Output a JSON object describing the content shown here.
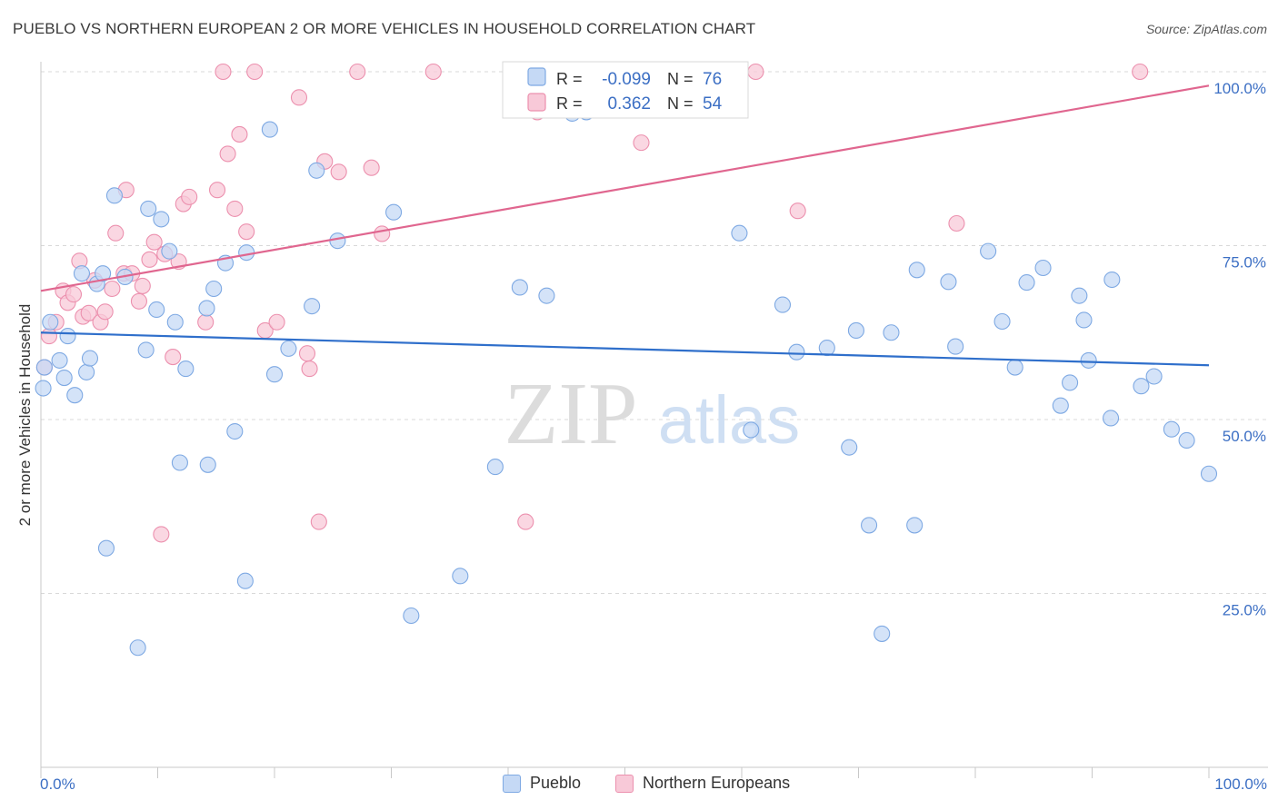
{
  "header": {
    "title": "PUEBLO VS NORTHERN EUROPEAN 2 OR MORE VEHICLES IN HOUSEHOLD CORRELATION CHART",
    "source": "Source: ZipAtlas.com"
  },
  "watermark": {
    "zip": "ZIP",
    "atlas": "atlas"
  },
  "legend_top": [
    {
      "r_label": "R =",
      "r_value": "-0.099",
      "n_label": "N =",
      "n_value": "76"
    },
    {
      "r_label": "R =",
      "r_value": "0.362",
      "n_label": "N =",
      "n_value": "54"
    }
  ],
  "legend_bottom": [
    {
      "label": "Pueblo"
    },
    {
      "label": "Northern Europeans"
    }
  ],
  "colors": {
    "pueblo_fill": "#c5d9f5",
    "pueblo_stroke": "#7ea9e3",
    "pueblo_line": "#2f6fcb",
    "north_fill": "#f8c9d8",
    "north_stroke": "#ec90ae",
    "north_line": "#e0668f",
    "axis_text": "#3c6fc4",
    "grid": "#d8d8d8"
  },
  "chart_data": {
    "type": "scatter",
    "title": "PUEBLO VS NORTHERN EUROPEAN 2 OR MORE VEHICLES IN HOUSEHOLD CORRELATION CHART",
    "xlabel": "",
    "ylabel": "2 or more Vehicles in Household",
    "xlim": [
      0,
      100
    ],
    "ylim": [
      0,
      100
    ],
    "x_tick_labels": [
      "0.0%",
      "100.0%"
    ],
    "y_ticks": [
      25,
      50,
      75,
      100
    ],
    "y_tick_labels": [
      "25.0%",
      "50.0%",
      "75.0%",
      "100.0%"
    ],
    "grid": true,
    "legend_placement": "top-center",
    "series": [
      {
        "name": "Pueblo",
        "r": -0.099,
        "n": 76,
        "trend": {
          "x": [
            0,
            100
          ],
          "y": [
            62.5,
            57.8
          ]
        },
        "points": [
          [
            0.2,
            54.5
          ],
          [
            0.8,
            64
          ],
          [
            1.6,
            58.5
          ],
          [
            2,
            56
          ],
          [
            2.3,
            62
          ],
          [
            2.9,
            53.5
          ],
          [
            3.5,
            71
          ],
          [
            3.9,
            56.8
          ],
          [
            4.2,
            58.8
          ],
          [
            4.8,
            69.5
          ],
          [
            5.3,
            71
          ],
          [
            5.6,
            31.5
          ],
          [
            6.3,
            82.2
          ],
          [
            7.2,
            70.5
          ],
          [
            8.3,
            17.2
          ],
          [
            9,
            60
          ],
          [
            9.2,
            80.3
          ],
          [
            9.9,
            65.8
          ],
          [
            10.3,
            78.8
          ],
          [
            11,
            74.2
          ],
          [
            11.5,
            64
          ],
          [
            11.9,
            43.8
          ],
          [
            12.4,
            57.3
          ],
          [
            14.2,
            66
          ],
          [
            14.3,
            43.5
          ],
          [
            14.8,
            68.8
          ],
          [
            15.8,
            72.5
          ],
          [
            16.6,
            48.3
          ],
          [
            17.5,
            26.8
          ],
          [
            17.6,
            74
          ],
          [
            19.6,
            91.7
          ],
          [
            20,
            56.5
          ],
          [
            21.2,
            60.2
          ],
          [
            23.2,
            66.3
          ],
          [
            23.6,
            85.8
          ],
          [
            25.4,
            75.7
          ],
          [
            30.2,
            79.8
          ],
          [
            31.7,
            21.8
          ],
          [
            35.9,
            27.5
          ],
          [
            38.9,
            43.2
          ],
          [
            41,
            69
          ],
          [
            43.3,
            67.8
          ],
          [
            45.5,
            94
          ],
          [
            46.7,
            94.2
          ],
          [
            59.8,
            76.8
          ],
          [
            60.8,
            48.5
          ],
          [
            63.5,
            66.5
          ],
          [
            64.7,
            59.7
          ],
          [
            67.3,
            60.3
          ],
          [
            69.2,
            46
          ],
          [
            69.8,
            62.8
          ],
          [
            70.9,
            34.8
          ],
          [
            72,
            19.2
          ],
          [
            72.8,
            62.5
          ],
          [
            75,
            71.5
          ],
          [
            74.8,
            34.8
          ],
          [
            77.7,
            69.8
          ],
          [
            78.3,
            60.5
          ],
          [
            81.1,
            74.2
          ],
          [
            82.3,
            64.1
          ],
          [
            83.4,
            57.5
          ],
          [
            84.4,
            69.7
          ],
          [
            85.8,
            71.8
          ],
          [
            87.3,
            52
          ],
          [
            88.1,
            55.3
          ],
          [
            88.9,
            67.8
          ],
          [
            89.3,
            64.3
          ],
          [
            89.7,
            58.5
          ],
          [
            91.6,
            50.2
          ],
          [
            91.7,
            70.1
          ],
          [
            94.2,
            54.8
          ],
          [
            95.3,
            56.2
          ],
          [
            96.8,
            48.6
          ],
          [
            98.1,
            47
          ],
          [
            100,
            42.2
          ],
          [
            0.3,
            57.5
          ]
        ]
      },
      {
        "name": "Northern Europeans",
        "r": 0.362,
        "n": 54,
        "trend": {
          "x": [
            0,
            100
          ],
          "y": [
            68.5,
            98
          ]
        },
        "points": [
          [
            0.3,
            57.5
          ],
          [
            0.7,
            62
          ],
          [
            1.3,
            64
          ],
          [
            1.9,
            68.5
          ],
          [
            2.3,
            66.8
          ],
          [
            2.8,
            68
          ],
          [
            3.3,
            72.8
          ],
          [
            3.6,
            64.8
          ],
          [
            4.1,
            65.3
          ],
          [
            4.6,
            70
          ],
          [
            5.1,
            64
          ],
          [
            5.5,
            65.5
          ],
          [
            6.1,
            68.8
          ],
          [
            6.4,
            76.8
          ],
          [
            7.1,
            71
          ],
          [
            7.3,
            83
          ],
          [
            7.8,
            71
          ],
          [
            8.4,
            67
          ],
          [
            8.7,
            69.2
          ],
          [
            9.3,
            73
          ],
          [
            9.7,
            75.5
          ],
          [
            10.3,
            33.5
          ],
          [
            10.6,
            73.8
          ],
          [
            11.3,
            59
          ],
          [
            11.8,
            72.7
          ],
          [
            12.2,
            81
          ],
          [
            12.7,
            82
          ],
          [
            14.1,
            64
          ],
          [
            15.1,
            83
          ],
          [
            15.6,
            100
          ],
          [
            16,
            88.2
          ],
          [
            16.6,
            80.3
          ],
          [
            17,
            91
          ],
          [
            17.6,
            77
          ],
          [
            18.3,
            100
          ],
          [
            19.2,
            62.8
          ],
          [
            20.2,
            64
          ],
          [
            22.1,
            96.3
          ],
          [
            22.8,
            59.5
          ],
          [
            23,
            57.3
          ],
          [
            23.8,
            35.3
          ],
          [
            24.3,
            87.1
          ],
          [
            25.5,
            85.6
          ],
          [
            27.1,
            100
          ],
          [
            28.3,
            86.2
          ],
          [
            29.2,
            76.7
          ],
          [
            33.6,
            100
          ],
          [
            41.5,
            35.3
          ],
          [
            42.5,
            94.2
          ],
          [
            51.4,
            89.8
          ],
          [
            61.2,
            100
          ],
          [
            64.8,
            80
          ],
          [
            78.4,
            78.2
          ],
          [
            94.1,
            100
          ]
        ]
      }
    ]
  }
}
